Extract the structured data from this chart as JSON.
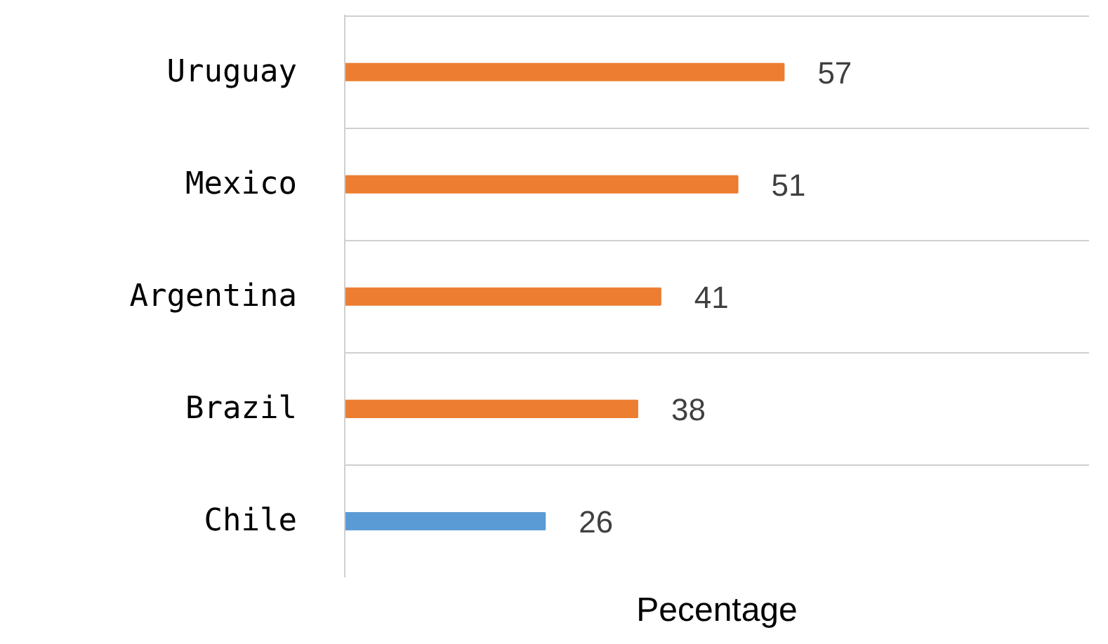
{
  "chart_data": {
    "type": "bar",
    "orientation": "horizontal",
    "xlabel": "Pecentage",
    "categories": [
      "Uruguay",
      "Mexico",
      "Argentina",
      "Brazil",
      "Chile"
    ],
    "values": [
      57,
      51,
      41,
      38,
      26
    ],
    "colors": [
      "#ed7d31",
      "#ed7d31",
      "#ed7d31",
      "#ed7d31",
      "#5b9bd5"
    ],
    "data_labels": true,
    "grid": "y"
  }
}
